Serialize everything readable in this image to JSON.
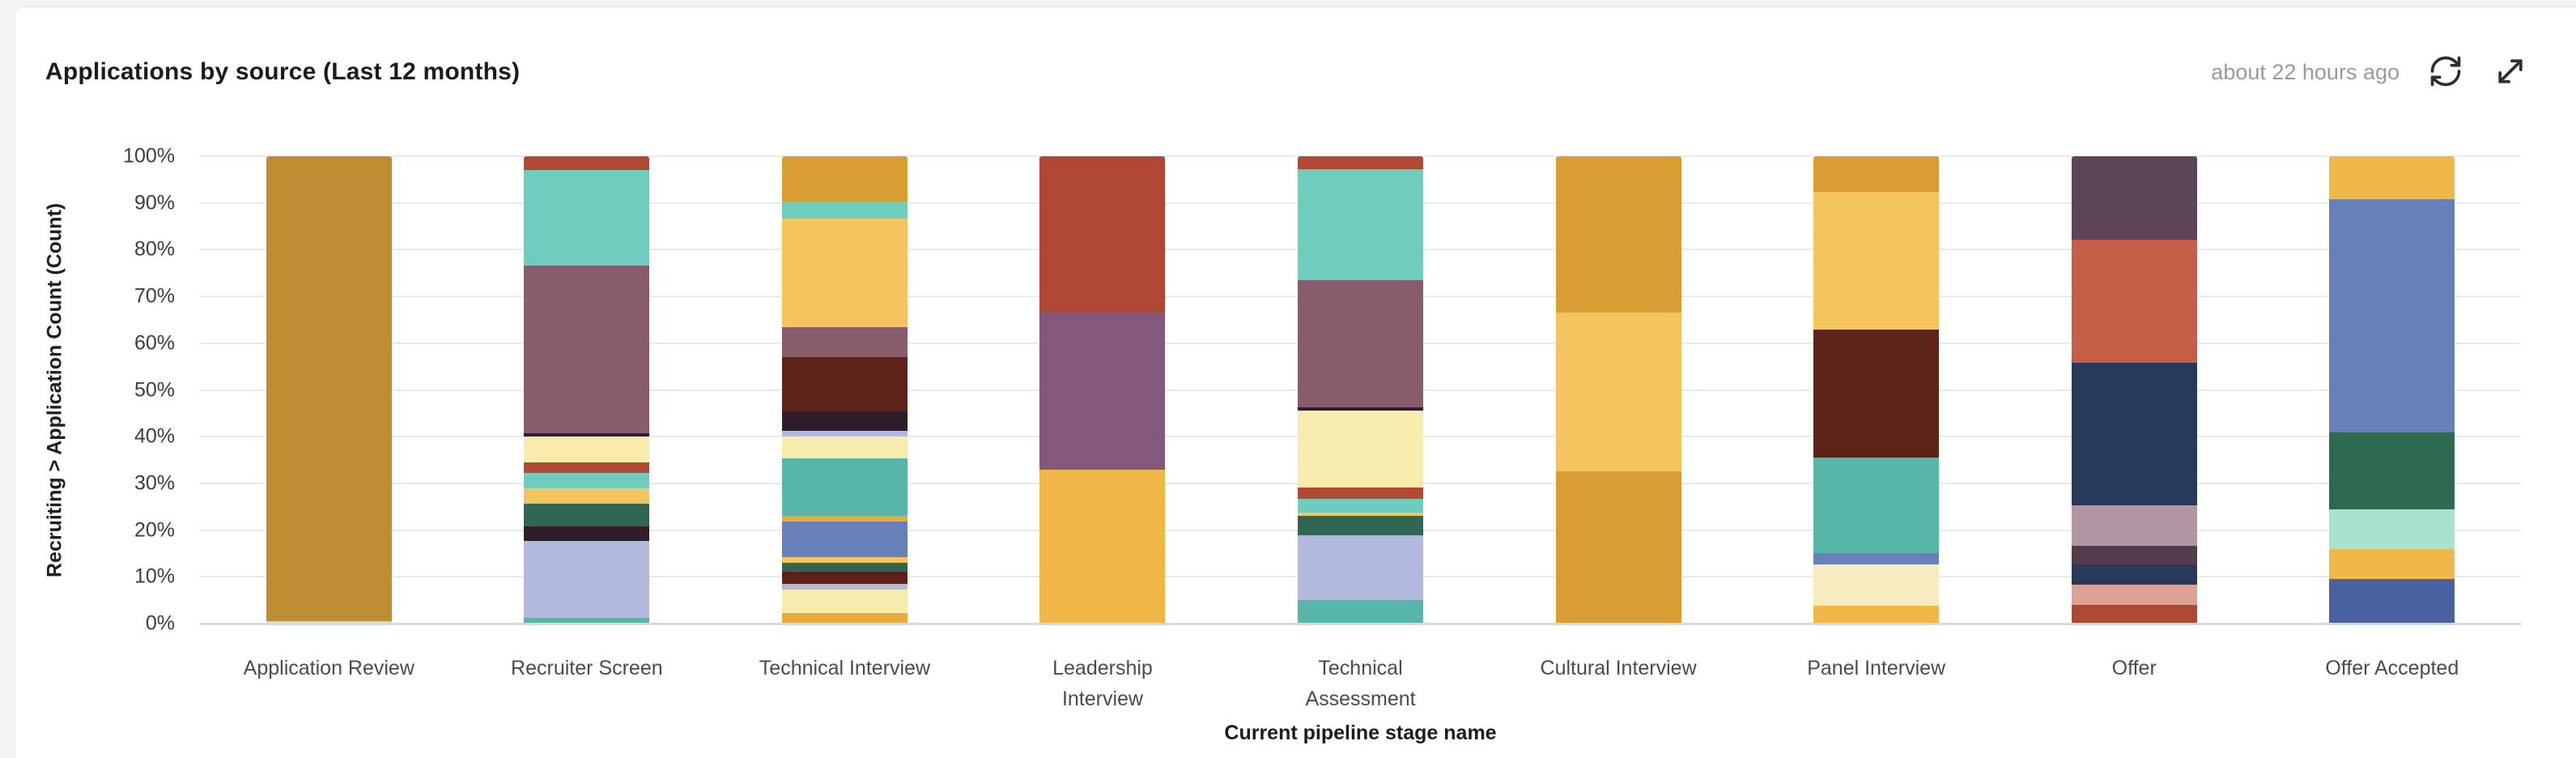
{
  "page": {
    "background": "#f3f4f5",
    "card_background": "#ffffff"
  },
  "header": {
    "title": "Applications by source (Last 12 months)",
    "last_updated": "about 22 hours ago",
    "actions": [
      {
        "icon": "refresh-icon"
      },
      {
        "icon": "expand-icon"
      }
    ]
  },
  "colors": {
    "gridline": "#e9eaea",
    "axis_line": "#d8d9d9",
    "title_text": "#1c1c1c",
    "muted_text": "#9a9a9a",
    "tick_text": "#3d3d3d",
    "label_text": "#4b4b4b",
    "icon": "#2e2e2e"
  },
  "chart_data": {
    "type": "bar",
    "variant": "stacked-100-percent",
    "title": "Applications by source (Last 12 months)",
    "xlabel": "Current pipeline stage name",
    "ylabel": "Recruiting > Application Count (Count)",
    "ylim": [
      0,
      100
    ],
    "y_ticks": [
      "100%",
      "90%",
      "80%",
      "70%",
      "60%",
      "50%",
      "40%",
      "30%",
      "20%",
      "10%",
      "0%"
    ],
    "grid": true,
    "legend": false,
    "categories": [
      "Application Review",
      "Recruiter Screen",
      "Technical Interview",
      "Leadership Interview",
      "Technical Assessment",
      "Cultural Interview",
      "Panel Interview",
      "Offer",
      "Offer Accepted"
    ],
    "bars": [
      {
        "label": "Application Review",
        "segments": [
          {
            "color": "#be8c33",
            "value": 99.5
          },
          {
            "color": "#bce3cc",
            "value": 0.5
          }
        ]
      },
      {
        "label": "Recruiter Screen",
        "segments": [
          {
            "color": "#b14a33",
            "value": 3.0
          },
          {
            "color": "#6fcdbd",
            "value": 20.4
          },
          {
            "color": "#885b6d",
            "value": 35.8
          },
          {
            "color": "#301d2a",
            "value": 0.8
          },
          {
            "color": "#f8ebae",
            "value": 5.6
          },
          {
            "color": "#b14a33",
            "value": 2.1
          },
          {
            "color": "#6fcdbd",
            "value": 3.3
          },
          {
            "color": "#f4c55f",
            "value": 3.3
          },
          {
            "color": "#306653",
            "value": 4.9
          },
          {
            "color": "#301d2a",
            "value": 3.2
          },
          {
            "color": "#b1badc",
            "value": 16.4
          },
          {
            "color": "#56b6a7",
            "value": 1.2
          }
        ]
      },
      {
        "label": "Technical Interview",
        "segments": [
          {
            "color": "#d99e33",
            "value": 9.7
          },
          {
            "color": "#6fcdbd",
            "value": 3.6
          },
          {
            "color": "#f4c55f",
            "value": 23.2
          },
          {
            "color": "#885b6d",
            "value": 6.5
          },
          {
            "color": "#5e2318",
            "value": 11.6
          },
          {
            "color": "#301d2a",
            "value": 4.2
          },
          {
            "color": "#b1badc",
            "value": 1.2
          },
          {
            "color": "#f8ebae",
            "value": 4.6
          },
          {
            "color": "#56b6a7",
            "value": 12.3
          },
          {
            "color": "#e8ac3e",
            "value": 1.2
          },
          {
            "color": "#6880b8",
            "value": 7.7
          },
          {
            "color": "#f4c55f",
            "value": 1.2
          },
          {
            "color": "#306653",
            "value": 2.0
          },
          {
            "color": "#5e2318",
            "value": 2.6
          },
          {
            "color": "#b1badc",
            "value": 1.2
          },
          {
            "color": "#f8ebae",
            "value": 4.9
          },
          {
            "color": "#e8ac3e",
            "value": 2.3
          }
        ]
      },
      {
        "label": "Leadership\nInterview",
        "segments": [
          {
            "color": "#ae4733",
            "value": 33.5
          },
          {
            "color": "#84587a",
            "value": 33.5
          },
          {
            "color": "#efb849",
            "value": 33.0
          }
        ]
      },
      {
        "label": "Technical\nAssessment",
        "segments": [
          {
            "color": "#b14a33",
            "value": 2.7
          },
          {
            "color": "#6fcdbd",
            "value": 23.9
          },
          {
            "color": "#885b6d",
            "value": 27.1
          },
          {
            "color": "#301d2a",
            "value": 0.8
          },
          {
            "color": "#f8ebae",
            "value": 16.4
          },
          {
            "color": "#b14a33",
            "value": 2.4
          },
          {
            "color": "#6fcdbd",
            "value": 2.9
          },
          {
            "color": "#f4c55f",
            "value": 0.8
          },
          {
            "color": "#306653",
            "value": 4.2
          },
          {
            "color": "#b1badc",
            "value": 13.7
          },
          {
            "color": "#56b6a7",
            "value": 5.1
          }
        ]
      },
      {
        "label": "Cultural Interview",
        "segments": [
          {
            "color": "#d99e33",
            "value": 33.5
          },
          {
            "color": "#f4c55f",
            "value": 34.0
          },
          {
            "color": "#d99e33",
            "value": 32.5
          }
        ]
      },
      {
        "label": "Panel Interview",
        "segments": [
          {
            "color": "#d99e33",
            "value": 7.7
          },
          {
            "color": "#f4c55f",
            "value": 29.4
          },
          {
            "color": "#5e2318",
            "value": 27.3
          },
          {
            "color": "#56b6a7",
            "value": 20.5
          },
          {
            "color": "#6880b8",
            "value": 2.4
          },
          {
            "color": "#f8ebc0",
            "value": 8.9
          },
          {
            "color": "#efb849",
            "value": 3.8
          }
        ]
      },
      {
        "label": "Offer",
        "segments": [
          {
            "color": "#5d4458",
            "value": 17.9
          },
          {
            "color": "#c65f47",
            "value": 26.3
          },
          {
            "color": "#273a5b",
            "value": 30.5
          },
          {
            "color": "#b295a4",
            "value": 8.7
          },
          {
            "color": "#543c4e",
            "value": 3.9
          },
          {
            "color": "#273a5b",
            "value": 4.4
          },
          {
            "color": "#dda294",
            "value": 4.4
          },
          {
            "color": "#ae4733",
            "value": 3.9
          }
        ]
      },
      {
        "label": "Offer Accepted",
        "segments": [
          {
            "color": "#efb849",
            "value": 9.2
          },
          {
            "color": "#6880b8",
            "value": 49.9
          },
          {
            "color": "#2e6a50",
            "value": 16.5
          },
          {
            "color": "#a8e3cf",
            "value": 8.4
          },
          {
            "color": "#efb849",
            "value": 6.5
          },
          {
            "color": "#4a61a1",
            "value": 9.5
          }
        ]
      }
    ]
  }
}
